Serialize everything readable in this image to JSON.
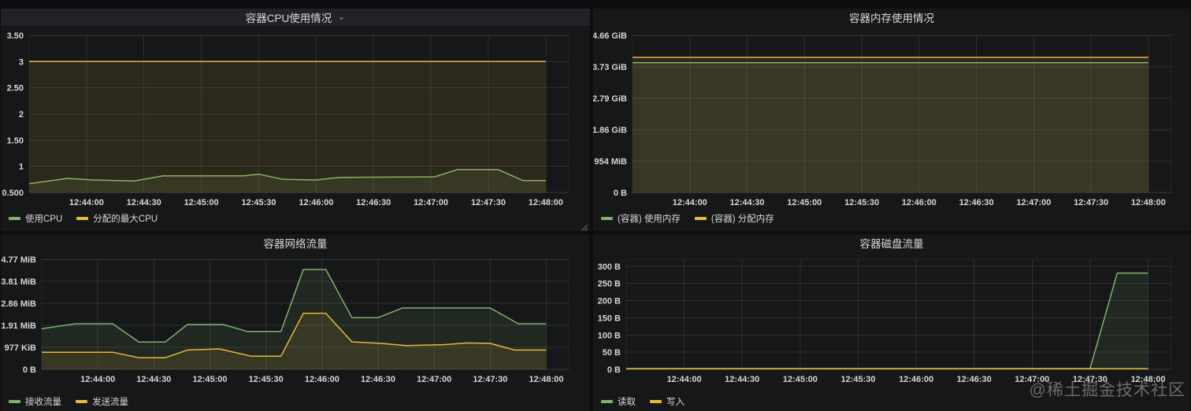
{
  "page": {
    "watermark": "@稀土掘金技术社区"
  },
  "icons": {
    "chevron_down": "⌄"
  },
  "colors": {
    "page_bg": "#0c0d0f",
    "panel_bg": "#161719",
    "panel_header_active_bg": "#202226",
    "text": "#d8d9da",
    "grid": "rgba(255,255,255,0.10)",
    "series_green": "#7EB26D",
    "series_yellow": "#EAB839"
  },
  "chart_data": [
    {
      "type": "line",
      "title": "容器CPU使用情况",
      "has_menu_chevron": true,
      "legend_position": "bottom",
      "grid": true,
      "x": {
        "domain": [
          0,
          282
        ],
        "ticks": [
          30,
          60,
          90,
          120,
          150,
          180,
          210,
          240,
          270
        ],
        "tick_labels": [
          "12:44:00",
          "12:44:30",
          "12:45:00",
          "12:45:30",
          "12:46:00",
          "12:46:30",
          "12:47:00",
          "12:47:30",
          "12:48:00"
        ]
      },
      "y": {
        "domain": [
          0.5,
          3.5
        ],
        "ticks": [
          3.5,
          3,
          2.5,
          2,
          1.5,
          1,
          0.5
        ],
        "tick_labels": [
          "3.50",
          "3",
          "2.50",
          "2",
          "1.50",
          "1",
          "0.500"
        ],
        "axis_width": 36
      },
      "series": [
        {
          "name": "使用CPU",
          "color": "#7EB26D",
          "points": [
            [
              0,
              0.67
            ],
            [
              20,
              0.77
            ],
            [
              33,
              0.74
            ],
            [
              55,
              0.72
            ],
            [
              70,
              0.82
            ],
            [
              112,
              0.82
            ],
            [
              120,
              0.85
            ],
            [
              133,
              0.75
            ],
            [
              150,
              0.74
            ],
            [
              162,
              0.79
            ],
            [
              212,
              0.8
            ],
            [
              224,
              0.94
            ],
            [
              245,
              0.94
            ],
            [
              258,
              0.73
            ],
            [
              270,
              0.73
            ]
          ]
        },
        {
          "name": "分配的最大CPU",
          "color": "#EAB839",
          "points": [
            [
              0,
              3
            ],
            [
              270,
              3
            ]
          ]
        }
      ]
    },
    {
      "type": "line",
      "title": "容器内存使用情况",
      "has_menu_chevron": false,
      "legend_position": "bottom",
      "grid": true,
      "x": {
        "domain": [
          0,
          282
        ],
        "ticks": [
          30,
          60,
          90,
          120,
          150,
          180,
          210,
          240,
          270
        ],
        "tick_labels": [
          "12:44:00",
          "12:44:30",
          "12:45:00",
          "12:45:30",
          "12:46:00",
          "12:46:30",
          "12:47:00",
          "12:47:30",
          "12:48:00"
        ]
      },
      "y": {
        "domain": [
          0,
          5
        ],
        "ticks": [
          5,
          4,
          3,
          2,
          1,
          0
        ],
        "tick_labels": [
          "4.66 GiB",
          "3.73 GiB",
          "2.79 GiB",
          "1.86 GiB",
          "954 MiB",
          "0 B"
        ],
        "axis_width": 50
      },
      "series": [
        {
          "name": "(容器) 使用内存",
          "color": "#7EB26D",
          "points": [
            [
              0,
              4.13
            ],
            [
              270,
              4.13
            ]
          ]
        },
        {
          "name": "(容器) 分配内存",
          "color": "#EAB839",
          "points": [
            [
              0,
              4.3
            ],
            [
              270,
              4.3
            ]
          ]
        }
      ]
    },
    {
      "type": "line",
      "title": "容器网络流量",
      "has_menu_chevron": false,
      "legend_position": "bottom",
      "grid": true,
      "x": {
        "domain": [
          0,
          282
        ],
        "ticks": [
          30,
          60,
          90,
          120,
          150,
          180,
          210,
          240,
          270
        ],
        "tick_labels": [
          "12:44:00",
          "12:44:30",
          "12:45:00",
          "12:45:30",
          "12:46:00",
          "12:46:30",
          "12:47:00",
          "12:47:30",
          "12:48:00"
        ]
      },
      "y": {
        "domain": [
          0,
          5
        ],
        "ticks": [
          5,
          4,
          3,
          2,
          1,
          0
        ],
        "tick_labels": [
          "4.77 MiB",
          "3.81 MiB",
          "2.86 MiB",
          "1.91 MiB",
          "977 KiB",
          "0 B"
        ],
        "axis_width": 52
      },
      "series": [
        {
          "name": "接收流量",
          "color": "#7EB26D",
          "points": [
            [
              0,
              1.85
            ],
            [
              18,
              2.07
            ],
            [
              38,
              2.07
            ],
            [
              52,
              1.24
            ],
            [
              66,
              1.24
            ],
            [
              78,
              2.04
            ],
            [
              97,
              2.04
            ],
            [
              110,
              1.72
            ],
            [
              128,
              1.72
            ],
            [
              140,
              4.54
            ],
            [
              152,
              4.54
            ],
            [
              166,
              2.35
            ],
            [
              180,
              2.35
            ],
            [
              193,
              2.79
            ],
            [
              240,
              2.79
            ],
            [
              255,
              2.07
            ],
            [
              270,
              2.07
            ]
          ]
        },
        {
          "name": "发送流量",
          "color": "#EAB839",
          "points": [
            [
              0,
              0.78
            ],
            [
              38,
              0.78
            ],
            [
              52,
              0.53
            ],
            [
              66,
              0.53
            ],
            [
              78,
              0.88
            ],
            [
              95,
              0.93
            ],
            [
              112,
              0.6
            ],
            [
              128,
              0.6
            ],
            [
              140,
              2.55
            ],
            [
              152,
              2.55
            ],
            [
              166,
              1.25
            ],
            [
              182,
              1.18
            ],
            [
              195,
              1.08
            ],
            [
              215,
              1.12
            ],
            [
              228,
              1.2
            ],
            [
              240,
              1.18
            ],
            [
              253,
              0.88
            ],
            [
              270,
              0.88
            ]
          ]
        }
      ]
    },
    {
      "type": "line",
      "title": "容器磁盘流量",
      "has_menu_chevron": false,
      "legend_position": "bottom",
      "grid": true,
      "x": {
        "domain": [
          0,
          282
        ],
        "ticks": [
          30,
          60,
          90,
          120,
          150,
          180,
          210,
          240,
          270
        ],
        "tick_labels": [
          "12:44:00",
          "12:44:30",
          "12:45:00",
          "12:45:30",
          "12:46:00",
          "12:46:30",
          "12:47:00",
          "12:47:30",
          "12:48:00"
        ]
      },
      "y": {
        "domain": [
          0,
          320
        ],
        "ticks": [
          300,
          250,
          200,
          150,
          100,
          50,
          0
        ],
        "tick_labels": [
          "300 B",
          "250 B",
          "200 B",
          "150 B",
          "100 B",
          "50 B",
          "0 B"
        ],
        "axis_width": 42
      },
      "series": [
        {
          "name": "读取",
          "color": "#7EB26D",
          "points": [
            [
              0,
              2
            ],
            [
              240,
              2
            ],
            [
              254,
              280
            ],
            [
              270,
              280
            ]
          ]
        },
        {
          "name": "写入",
          "color": "#EAB839",
          "points": [
            [
              0,
              2
            ],
            [
              270,
              2
            ]
          ]
        }
      ]
    }
  ]
}
